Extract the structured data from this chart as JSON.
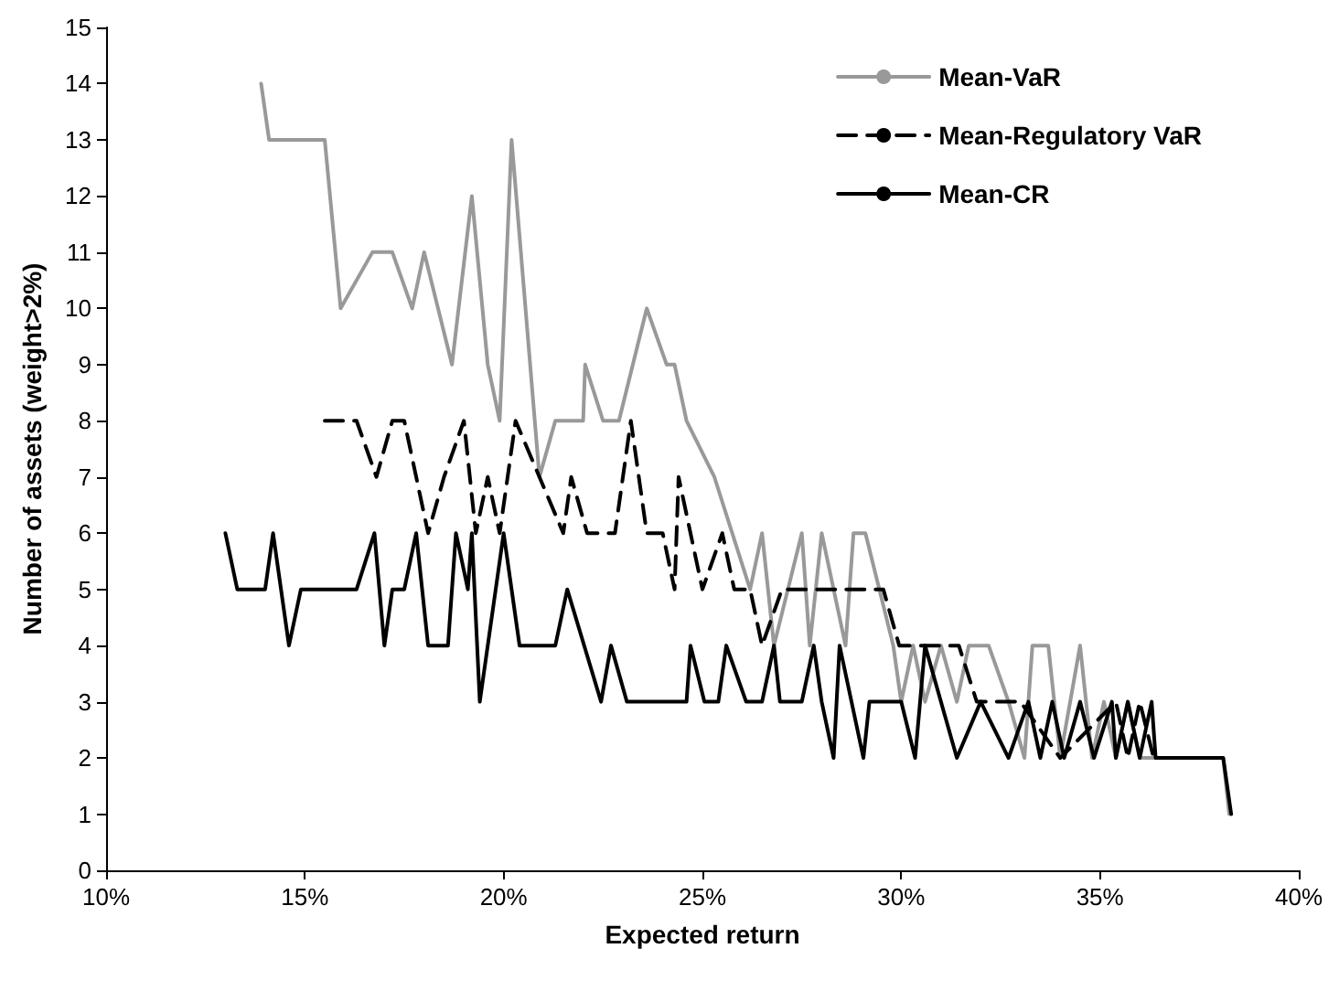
{
  "chart_data": {
    "type": "line",
    "xlabel": "Expected return",
    "ylabel": "Number of assets (weight>2%)",
    "xlim": [
      10,
      40
    ],
    "xticks": [
      {
        "value": 10,
        "label": "10%"
      },
      {
        "value": 15,
        "label": "15%"
      },
      {
        "value": 20,
        "label": "20%"
      },
      {
        "value": 25,
        "label": "25%"
      },
      {
        "value": 30,
        "label": "30%"
      },
      {
        "value": 35,
        "label": "35%"
      },
      {
        "value": 40,
        "label": "40%"
      }
    ],
    "ylim": [
      0,
      15
    ],
    "yticks": [
      0,
      1,
      2,
      3,
      4,
      5,
      6,
      7,
      8,
      9,
      10,
      11,
      12,
      13,
      14,
      15
    ],
    "grid": false,
    "legend": "top right",
    "marker": "none",
    "series": [
      {
        "name": "Mean-VaR",
        "color": "#999999",
        "line_style": "solid",
        "x": [
          13.9,
          14.1,
          15.5,
          15.9,
          16.7,
          17.2,
          17.7,
          18.0,
          18.7,
          19.2,
          19.6,
          19.9,
          20.2,
          20.9,
          21.3,
          22.0,
          22.05,
          22.5,
          22.9,
          23.6,
          24.1,
          24.3,
          24.6,
          25.3,
          26.2,
          26.5,
          26.8,
          27.5,
          27.7,
          28.0,
          28.6,
          28.8,
          29.1,
          29.8,
          30.0,
          30.3,
          30.6,
          31.0,
          31.4,
          31.7,
          32.2,
          32.7,
          33.1,
          33.3,
          33.7,
          34.0,
          34.5,
          34.8,
          35.1,
          35.4,
          35.7,
          36.0,
          36.3,
          38.1,
          38.25
        ],
        "values": [
          14,
          13,
          13,
          10,
          11,
          11,
          10,
          11,
          9,
          12,
          9,
          8,
          13,
          7,
          8,
          8,
          9,
          8,
          8,
          10,
          9,
          9,
          8,
          7,
          5,
          6,
          4,
          6,
          4,
          6,
          4,
          6,
          6,
          4,
          3,
          4,
          3,
          4,
          3,
          4,
          4,
          3,
          2,
          4,
          4,
          2,
          4,
          2,
          3,
          2,
          3,
          2,
          2,
          2,
          1
        ]
      },
      {
        "name": "Mean-Regulatory VaR",
        "color": "#000000",
        "line_style": "dashed",
        "x": [
          15.5,
          16.3,
          16.8,
          17.2,
          17.5,
          18.1,
          18.5,
          19.0,
          19.3,
          19.6,
          19.9,
          20.3,
          20.9,
          21.5,
          21.7,
          22.1,
          22.8,
          23.2,
          23.6,
          24.0,
          24.3,
          24.4,
          25.0,
          25.5,
          25.8,
          26.2,
          26.5,
          27.0,
          29.55,
          29.95,
          31.45,
          31.9,
          33.0,
          34.0,
          35.4,
          35.7,
          36.0,
          36.35
        ],
        "values": [
          8,
          8,
          7,
          8,
          8,
          6,
          7,
          8,
          6,
          7,
          6,
          8,
          7,
          6,
          7,
          6,
          6,
          8,
          6,
          6,
          5,
          7,
          5,
          6,
          5,
          5,
          4,
          5,
          5,
          4,
          4,
          3,
          3,
          2,
          3,
          2,
          3,
          2
        ]
      },
      {
        "name": "Mean-CR",
        "color": "#000000",
        "line_style": "solid",
        "x": [
          13.0,
          13.3,
          14.0,
          14.2,
          14.6,
          14.9,
          16.3,
          16.75,
          17.0,
          17.2,
          17.5,
          17.8,
          18.1,
          18.6,
          18.8,
          19.1,
          19.2,
          19.4,
          20.0,
          20.4,
          21.3,
          21.6,
          22.45,
          22.7,
          23.1,
          24.6,
          24.7,
          25.05,
          25.4,
          25.6,
          26.1,
          26.5,
          26.8,
          26.95,
          27.5,
          27.8,
          28.0,
          28.3,
          28.45,
          29.05,
          29.2,
          30.0,
          30.35,
          30.6,
          31.4,
          32.0,
          32.7,
          33.2,
          33.5,
          33.8,
          34.1,
          34.5,
          34.85,
          35.3,
          35.4,
          35.7,
          36.0,
          36.3,
          36.4,
          38.1,
          38.3
        ],
        "values": [
          6,
          5,
          5,
          6,
          4,
          5,
          5,
          6,
          4,
          5,
          5,
          6,
          4,
          4,
          6,
          5,
          6,
          3,
          6,
          4,
          4,
          5,
          3,
          4,
          3,
          3,
          4,
          3,
          3,
          4,
          3,
          3,
          4,
          3,
          3,
          4,
          3,
          2,
          4,
          2,
          3,
          3,
          2,
          4,
          2,
          3,
          2,
          3,
          2,
          3,
          2,
          3,
          2,
          3,
          2,
          3,
          2,
          3,
          2,
          2,
          1
        ]
      }
    ]
  }
}
